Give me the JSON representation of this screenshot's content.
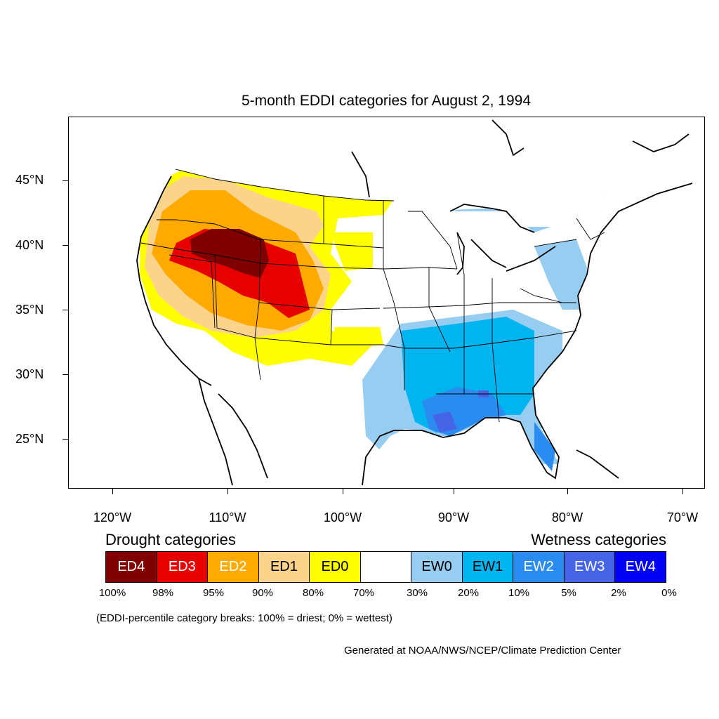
{
  "title": "5-month EDDI categories for August 2, 1994",
  "y_axis": [
    "45°N",
    "40°N",
    "35°N",
    "30°N",
    "25°N"
  ],
  "x_axis": [
    "120°W",
    "110°W",
    "100°W",
    "90°W",
    "80°W",
    "70°W"
  ],
  "legend": {
    "drought_heading": "Drought categories",
    "wetness_heading": "Wetness categories",
    "categories": [
      {
        "label": "ED4",
        "color": "#800000",
        "text_color": "#ffffff"
      },
      {
        "label": "ED3",
        "color": "#e60000",
        "text_color": "#ffffff"
      },
      {
        "label": "ED2",
        "color": "#ffaa00",
        "text_color": "#ffffff"
      },
      {
        "label": "ED1",
        "color": "#fcd38b",
        "text_color": "#000000"
      },
      {
        "label": "ED0",
        "color": "#ffff00",
        "text_color": "#000000"
      },
      {
        "label": "",
        "color": "#ffffff",
        "text_color": "#000000"
      },
      {
        "label": "EW0",
        "color": "#97cdf0",
        "text_color": "#000000"
      },
      {
        "label": "EW1",
        "color": "#00b4f0",
        "text_color": "#000000"
      },
      {
        "label": "EW2",
        "color": "#2a8cf0",
        "text_color": "#ffffff"
      },
      {
        "label": "EW3",
        "color": "#4664e6",
        "text_color": "#ffffff"
      },
      {
        "label": "EW4",
        "color": "#0000f5",
        "text_color": "#ffffff"
      }
    ],
    "percent_breaks": [
      "100%",
      "98%",
      "95%",
      "90%",
      "80%",
      "70%",
      "30%",
      "20%",
      "10%",
      "5%",
      "2%",
      "0%"
    ]
  },
  "note": "(EDDI-percentile category breaks: 100% = driest; 0% = wettest)",
  "footer": "Generated at NOAA/NWS/NCEP/Climate Prediction Center"
}
